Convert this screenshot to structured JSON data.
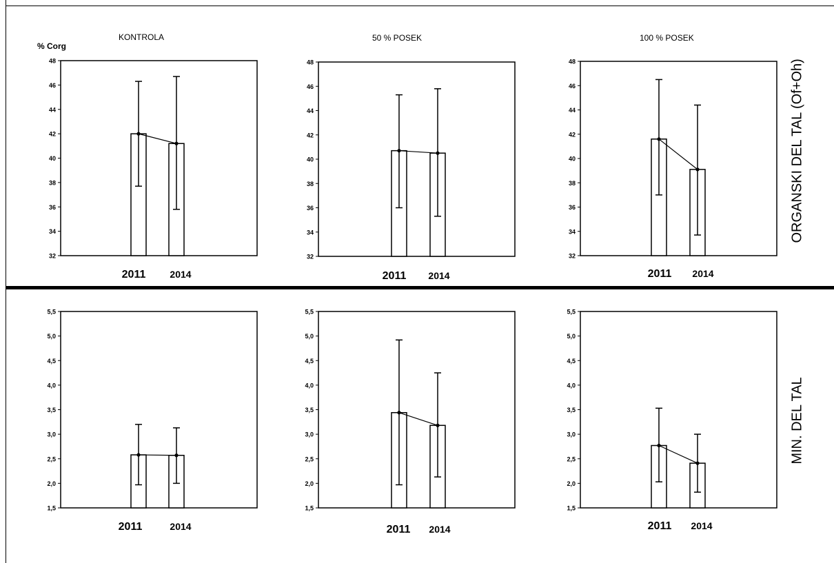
{
  "figure": {
    "column_titles": [
      "KONTROLA",
      "50 % POSEK",
      "100 % POSEK"
    ],
    "unit_label": "% Corg",
    "row_labels": [
      "ORGANSKI DEL TAL (Of+Oh)",
      "MIN. DEL TAL"
    ]
  },
  "chart_data": [
    {
      "type": "bar",
      "panel": "top-kontrola",
      "categories": [
        "2011",
        "2014"
      ],
      "values": [
        42.0,
        41.2
      ],
      "error_low": [
        37.7,
        35.8
      ],
      "error_high": [
        46.3,
        46.7
      ],
      "ylim": [
        32,
        48
      ],
      "yticks": [
        "32",
        "34",
        "36",
        "38",
        "40",
        "42",
        "44",
        "46",
        "48"
      ],
      "connect_means": true
    },
    {
      "type": "bar",
      "panel": "top-50",
      "categories": [
        "2011",
        "2014"
      ],
      "values": [
        40.7,
        40.5
      ],
      "error_low": [
        36.0,
        35.3
      ],
      "error_high": [
        45.3,
        45.8
      ],
      "ylim": [
        32,
        48
      ],
      "yticks": [
        "32",
        "34",
        "36",
        "38",
        "40",
        "42",
        "44",
        "46",
        "48"
      ],
      "connect_means": true
    },
    {
      "type": "bar",
      "panel": "top-100",
      "categories": [
        "2011",
        "2014"
      ],
      "values": [
        41.6,
        39.1
      ],
      "error_low": [
        37.0,
        33.7
      ],
      "error_high": [
        46.5,
        44.4
      ],
      "ylim": [
        32,
        48
      ],
      "yticks": [
        "32",
        "34",
        "36",
        "38",
        "40",
        "42",
        "44",
        "46",
        "48"
      ],
      "connect_means": true
    },
    {
      "type": "bar",
      "panel": "bottom-kontrola",
      "categories": [
        "2011",
        "2014"
      ],
      "values": [
        2.58,
        2.57
      ],
      "error_low": [
        1.97,
        2.0
      ],
      "error_high": [
        3.2,
        3.13
      ],
      "ylim": [
        1.5,
        5.5
      ],
      "yticks": [
        "1,5",
        "2,0",
        "2,5",
        "3,0",
        "3,5",
        "4,0",
        "4,5",
        "5,0",
        "5,5"
      ],
      "connect_means": true
    },
    {
      "type": "bar",
      "panel": "bottom-50",
      "categories": [
        "2011",
        "2014"
      ],
      "values": [
        3.44,
        3.18
      ],
      "error_low": [
        1.97,
        2.13
      ],
      "error_high": [
        4.92,
        4.25
      ],
      "ylim": [
        1.5,
        5.5
      ],
      "yticks": [
        "1,5",
        "2,0",
        "2,5",
        "3,0",
        "3,5",
        "4,0",
        "4,5",
        "5,0",
        "5,5"
      ],
      "connect_means": true
    },
    {
      "type": "bar",
      "panel": "bottom-100",
      "categories": [
        "2011",
        "2014"
      ],
      "values": [
        2.77,
        2.41
      ],
      "error_low": [
        2.03,
        1.82
      ],
      "error_high": [
        3.53,
        3.0
      ],
      "ylim": [
        1.5,
        5.5
      ],
      "yticks": [
        "1,5",
        "2,0",
        "2,5",
        "3,0",
        "3,5",
        "4,0",
        "4,5",
        "5,0",
        "5,5"
      ],
      "connect_means": true
    }
  ]
}
